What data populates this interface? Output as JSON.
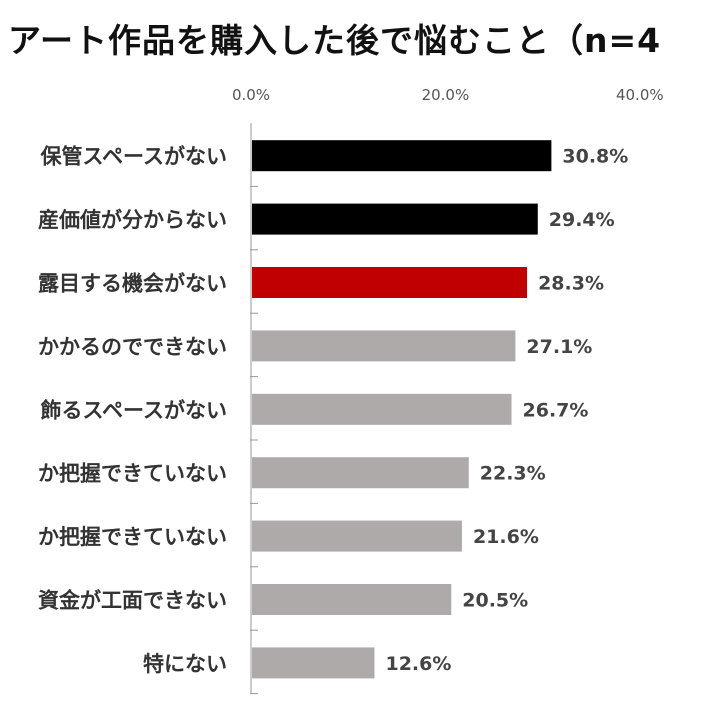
{
  "chart_data": {
    "type": "bar",
    "orientation": "horizontal",
    "title": "アート作品を購入した後で悩むこと（n=4",
    "categories": [
      "保管スペースがない",
      "産価値が分からない",
      "露目する機会がない",
      "かかるのでできない",
      "飾るスペースがない",
      "か把握できていない",
      "か把握できていない",
      "資金が工面できない",
      "特にない"
    ],
    "values": [
      30.8,
      29.4,
      28.3,
      27.1,
      26.7,
      22.3,
      21.6,
      20.5,
      12.6
    ],
    "data_labels": [
      "30.8%",
      "29.4%",
      "28.3%",
      "27.1%",
      "26.7%",
      "22.3%",
      "21.6%",
      "20.5%",
      "12.6%"
    ],
    "bar_colors": [
      "#000000",
      "#000000",
      "#c00000",
      "#aeaaaa",
      "#aeaaaa",
      "#aeaaaa",
      "#aeaaaa",
      "#aeaaaa",
      "#aeaaaa"
    ],
    "x_ticks": [
      0,
      20,
      40
    ],
    "x_tick_labels": [
      "0.0%",
      "20.0%",
      "40.0%"
    ],
    "xlim": [
      0,
      50
    ],
    "axis_position": "top",
    "grid": false
  }
}
